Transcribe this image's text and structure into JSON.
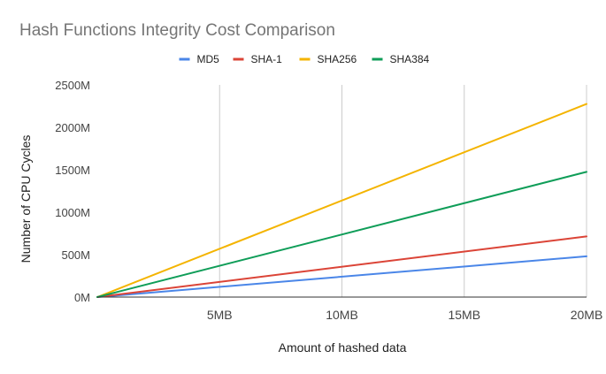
{
  "chart_data": {
    "type": "line",
    "title": "Hash Functions Integrity Cost Comparison",
    "xlabel": "Amount of hashed data",
    "ylabel": "Number of CPU Cycles",
    "x_unit": "MB",
    "x": [
      0,
      20
    ],
    "xlim": [
      0,
      20
    ],
    "x_ticks": [
      5,
      10,
      15,
      20
    ],
    "x_tick_labels": [
      "5MB",
      "10MB",
      "15MB",
      "20MB"
    ],
    "ylim": [
      0,
      2500
    ],
    "y_unit": "M",
    "y_ticks": [
      0,
      500,
      1000,
      1500,
      2000,
      2500
    ],
    "y_tick_labels": [
      "0M",
      "500M",
      "1000M",
      "1500M",
      "2000M",
      "2500M"
    ],
    "grid": {
      "vertical": true,
      "horizontal": false
    },
    "legend_position": "top",
    "series": [
      {
        "name": "MD5",
        "color": "#4a86e8",
        "values": [
          0,
          480
        ]
      },
      {
        "name": "SHA-1",
        "color": "#db4437",
        "values": [
          0,
          715
        ]
      },
      {
        "name": "SHA256",
        "color": "#f4b400",
        "values": [
          0,
          2275
        ]
      },
      {
        "name": "SHA384",
        "color": "#0f9d58",
        "values": [
          0,
          1475
        ]
      }
    ]
  }
}
